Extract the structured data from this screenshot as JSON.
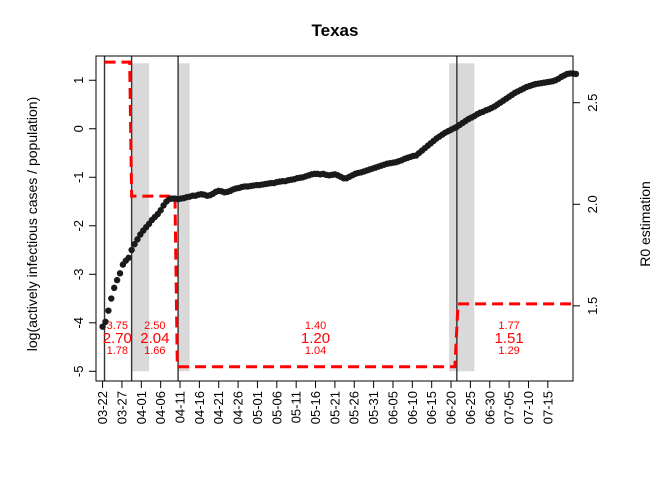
{
  "chart_data": {
    "type": "scatter",
    "title": "Texas",
    "ylabel": "log(actively infectious cases / population)",
    "y2label": "R0 estimation",
    "ylim": [
      -5.2,
      1.5
    ],
    "y2lim": [
      1.13,
      2.73
    ],
    "y_ticks": [
      -5,
      -4,
      -3,
      -2,
      -1,
      0,
      1
    ],
    "y_tick_labels": [
      "-5",
      "-4",
      "-3",
      "-2",
      "-1",
      "0",
      "1"
    ],
    "y2_ticks": [
      1.5,
      2.0,
      2.5
    ],
    "y2_tick_labels": [
      "1.5",
      "2.0",
      "2.5"
    ],
    "x_tick_labels": [
      "03-22",
      "03-27",
      "04-01",
      "04-06",
      "04-11",
      "04-16",
      "04-21",
      "04-26",
      "05-01",
      "05-06",
      "05-11",
      "05-16",
      "05-21",
      "05-26",
      "05-31",
      "06-05",
      "06-10",
      "06-15",
      "06-20",
      "06-25",
      "06-30",
      "07-05",
      "07-10",
      "07-15"
    ],
    "x_range_days": [
      -1.7,
      121.5
    ],
    "grid": false,
    "x_day_zero": "03-22",
    "x_step_days": 5,
    "points_day_start": 0,
    "points_log_ratio": [
      -4.08,
      -3.98,
      -3.75,
      -3.5,
      -3.28,
      -3.12,
      -2.98,
      -2.8,
      -2.72,
      -2.66,
      -2.5,
      -2.38,
      -2.28,
      -2.18,
      -2.1,
      -2.03,
      -1.96,
      -1.88,
      -1.82,
      -1.76,
      -1.68,
      -1.58,
      -1.5,
      -1.45,
      -1.44,
      -1.44,
      -1.45,
      -1.44,
      -1.43,
      -1.41,
      -1.4,
      -1.38,
      -1.38,
      -1.36,
      -1.35,
      -1.36,
      -1.38,
      -1.37,
      -1.34,
      -1.3,
      -1.28,
      -1.29,
      -1.31,
      -1.3,
      -1.28,
      -1.25,
      -1.23,
      -1.22,
      -1.2,
      -1.19,
      -1.19,
      -1.18,
      -1.17,
      -1.16,
      -1.16,
      -1.15,
      -1.14,
      -1.13,
      -1.12,
      -1.12,
      -1.1,
      -1.09,
      -1.08,
      -1.08,
      -1.06,
      -1.05,
      -1.04,
      -1.02,
      -1.01,
      -1.0,
      -0.98,
      -0.96,
      -0.94,
      -0.93,
      -0.93,
      -0.94,
      -0.93,
      -0.95,
      -0.96,
      -0.95,
      -0.94,
      -0.96,
      -0.99,
      -1.02,
      -1.02,
      -0.99,
      -0.96,
      -0.93,
      -0.91,
      -0.9,
      -0.88,
      -0.86,
      -0.84,
      -0.82,
      -0.8,
      -0.78,
      -0.76,
      -0.74,
      -0.72,
      -0.71,
      -0.7,
      -0.69,
      -0.67,
      -0.65,
      -0.62,
      -0.6,
      -0.58,
      -0.56,
      -0.55,
      -0.5,
      -0.45,
      -0.4,
      -0.35,
      -0.3,
      -0.25,
      -0.2,
      -0.16,
      -0.12,
      -0.08,
      -0.05,
      -0.02,
      0.01,
      0.04,
      0.08,
      0.12,
      0.16,
      0.2,
      0.23,
      0.26,
      0.3,
      0.33,
      0.35,
      0.38,
      0.4,
      0.43,
      0.46,
      0.5,
      0.54,
      0.58,
      0.62,
      0.66,
      0.7,
      0.74,
      0.77,
      0.8,
      0.83,
      0.86,
      0.88,
      0.9,
      0.92,
      0.93,
      0.94,
      0.95,
      0.96,
      0.97,
      0.98,
      1.0,
      1.03,
      1.07,
      1.1,
      1.13,
      1.14,
      1.14,
      1.13
    ],
    "points_day_step": 0.75,
    "changepoints_day": [
      0.5,
      7.5,
      19.5,
      91.5
    ],
    "shaded_ranges_day": [
      [
        7.5,
        12.0
      ],
      [
        19.5,
        22.5
      ],
      [
        89.5,
        96.0
      ]
    ],
    "r0_steps": [
      {
        "from_day": 0.5,
        "to_day": 7.0,
        "value": 2.7
      },
      {
        "from_day": 7.5,
        "to_day": 18.7,
        "value": 2.04
      },
      {
        "from_day": 19.3,
        "to_day": 91.0,
        "value": 1.2
      },
      {
        "from_day": 91.8,
        "to_day": 121.0,
        "value": 1.51
      }
    ],
    "r0_annotations": [
      {
        "day": 3.8,
        "high": "3.75",
        "mid": "2.70",
        "low": "1.78"
      },
      {
        "day": 13.5,
        "high": "2.50",
        "mid": "2.04",
        "low": "1.66"
      },
      {
        "day": 55.0,
        "high": "1.40",
        "mid": "1.20",
        "low": "1.04"
      },
      {
        "day": 105.0,
        "high": "1.77",
        "mid": "1.51",
        "low": "1.29"
      }
    ],
    "colors": {
      "points": "#1a1a1a",
      "r0_line": "#ff0000",
      "annotation": "#ff0000",
      "shade": "#d9d9d9",
      "changepoint": "#333333"
    }
  }
}
